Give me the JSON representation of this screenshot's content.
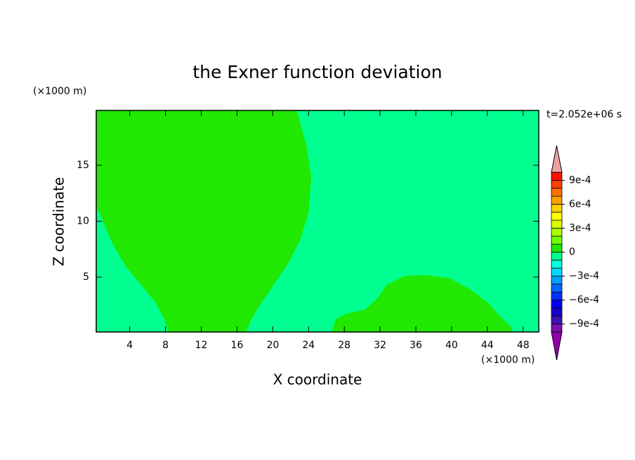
{
  "chart_data": {
    "type": "contour",
    "title": "the Exner function deviation",
    "x_label": "X coordinate",
    "y_label": "Z coordinate",
    "x_unit": "(×1000 m)",
    "y_unit": "(×1000 m)",
    "time_label": "t=2.052e+06 s",
    "xlim": [
      0.25,
      49.75
    ],
    "ylim": [
      0.1,
      19.9
    ],
    "xticks": [
      4,
      8,
      12,
      16,
      20,
      24,
      28,
      32,
      36,
      40,
      44,
      48
    ],
    "yticks": [
      5,
      10,
      15
    ],
    "background_lower": -0.0001,
    "regions": [
      {
        "lower": 0,
        "x": [
          0.25,
          22.7,
          23.8,
          24.3,
          24.0,
          23.1,
          21.7,
          20.1,
          18.7,
          17.6,
          17.0,
          8.3,
          7.9,
          6.9,
          5.6,
          3.6,
          2.0,
          0.5,
          0.25
        ],
        "y": [
          19.9,
          19.9,
          16.6,
          14.0,
          10.8,
          8.4,
          6.2,
          4.3,
          2.7,
          1.2,
          0.1,
          0.1,
          1.2,
          2.7,
          4.0,
          5.9,
          8.1,
          10.9,
          11.2
        ]
      },
      {
        "lower": 0,
        "x": [
          26.6,
          27.0,
          28.1,
          30.3,
          31.7,
          32.7,
          34.7,
          37.0,
          39.8,
          42.1,
          44.1,
          45.4,
          46.6,
          46.8
        ],
        "y": [
          0.1,
          1.2,
          1.7,
          2.1,
          3.1,
          4.3,
          5.1,
          5.2,
          4.9,
          3.9,
          2.7,
          1.5,
          0.6,
          0.1
        ]
      }
    ],
    "colorbar": {
      "clim": [
        -0.001,
        0.001
      ],
      "colors": [
        "#7a10b0",
        "#4010b0",
        "#1800c8",
        "#0000f0",
        "#0030ff",
        "#0068ff",
        "#00a0ff",
        "#00d8ff",
        "#00ffe0",
        "#00ff90",
        "#20e800",
        "#70ff00",
        "#a8ff00",
        "#d8ff00",
        "#ffff00",
        "#ffd000",
        "#ffa000",
        "#ff7000",
        "#ff4000",
        "#ff1000"
      ],
      "over_color": "#f0a0a0",
      "under_color": "#9000a8",
      "ticks": [
        {
          "value": 0.0009,
          "label": "9e-4"
        },
        {
          "value": 0.0006,
          "label": "6e-4"
        },
        {
          "value": 0.0003,
          "label": "3e-4"
        },
        0,
        {
          "value": -0.0003,
          "label": "−3e-4"
        },
        {
          "value": -0.0006,
          "label": "−6e-4"
        },
        {
          "value": -0.0009,
          "label": "−9e-4"
        }
      ]
    }
  }
}
